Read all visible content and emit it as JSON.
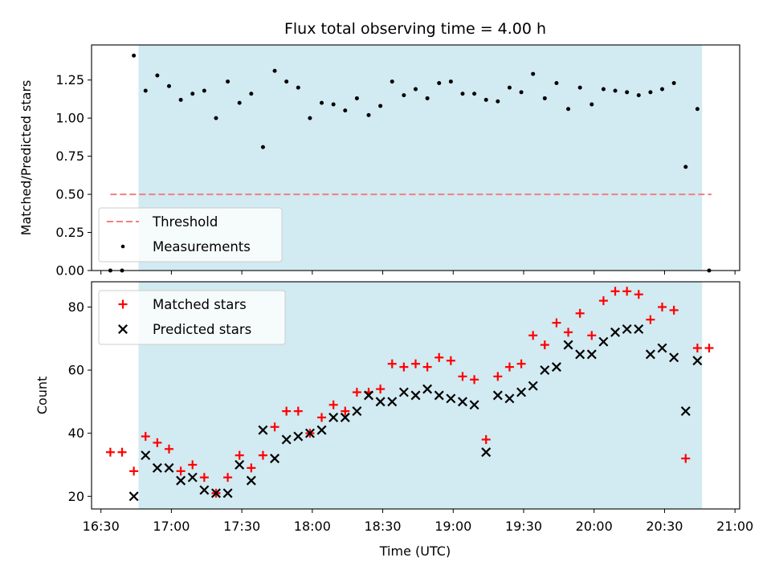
{
  "chart_data": {
    "title": "Flux total observing time = 4.00 h",
    "xlabel": "Time (UTC)",
    "x_unit": "minutes since 16:00 UTC",
    "x_range": [
      26,
      302
    ],
    "x_ticks": [
      30,
      60,
      90,
      120,
      150,
      180,
      210,
      240,
      270,
      300
    ],
    "x_tick_labels": [
      "16:30",
      "17:00",
      "17:30",
      "18:00",
      "18:30",
      "19:00",
      "19:30",
      "20:00",
      "20:30",
      "21:00"
    ],
    "observing_window": [
      46,
      286
    ],
    "observing_window_color": "#add8e6",
    "top_panel": {
      "type": "scatter",
      "ylabel": "Matched/Predicted stars",
      "ylim": [
        0,
        1.48
      ],
      "y_ticks": [
        0,
        0.25,
        0.5,
        0.75,
        1.0,
        1.25
      ],
      "y_tick_labels": [
        "0.00",
        "0.25",
        "0.50",
        "0.75",
        "1.00",
        "1.25"
      ],
      "threshold": {
        "name": "Threshold",
        "value": 0.5,
        "x_range": [
          34,
          290
        ],
        "color": "#f08080"
      },
      "measurements": {
        "name": "Measurements",
        "color": "#000000",
        "x": [
          34,
          39,
          44,
          49,
          54,
          59,
          64,
          69,
          74,
          79,
          84,
          89,
          94,
          99,
          104,
          109,
          114,
          119,
          124,
          129,
          134,
          139,
          144,
          149,
          154,
          159,
          164,
          169,
          174,
          179,
          184,
          189,
          194,
          199,
          204,
          209,
          214,
          219,
          224,
          229,
          234,
          239,
          244,
          249,
          254,
          259,
          264,
          269,
          274,
          279,
          284,
          289
        ],
        "y": [
          0.0,
          0.0,
          1.41,
          1.18,
          1.28,
          1.21,
          1.12,
          1.16,
          1.18,
          1.0,
          1.24,
          1.1,
          1.16,
          0.81,
          1.31,
          1.24,
          1.2,
          1.0,
          1.1,
          1.09,
          1.05,
          1.13,
          1.02,
          1.08,
          1.24,
          1.15,
          1.19,
          1.13,
          1.23,
          1.24,
          1.16,
          1.16,
          1.12,
          1.11,
          1.2,
          1.17,
          1.29,
          1.13,
          1.23,
          1.06,
          1.2,
          1.09,
          1.19,
          1.18,
          1.17,
          1.15,
          1.17,
          1.19,
          1.23,
          0.68,
          1.06,
          0.0
        ]
      },
      "legend_position": "lower-left"
    },
    "bottom_panel": {
      "type": "scatter",
      "ylabel": "Count",
      "ylim": [
        16,
        88
      ],
      "y_ticks": [
        20,
        40,
        60,
        80
      ],
      "y_tick_labels": [
        "20",
        "40",
        "60",
        "80"
      ],
      "series": [
        {
          "name": "Matched stars",
          "marker": "+",
          "color": "#ff0000",
          "x": [
            34,
            39,
            44,
            49,
            54,
            59,
            64,
            69,
            74,
            79,
            84,
            89,
            94,
            99,
            104,
            109,
            114,
            119,
            124,
            129,
            134,
            139,
            144,
            149,
            154,
            159,
            164,
            169,
            174,
            179,
            184,
            189,
            194,
            199,
            204,
            209,
            214,
            219,
            224,
            229,
            234,
            239,
            244,
            249,
            254,
            259,
            264,
            269,
            274,
            279,
            284,
            289
          ],
          "y": [
            34,
            34,
            28,
            39,
            37,
            35,
            28,
            30,
            26,
            21,
            26,
            33,
            29,
            33,
            42,
            47,
            47,
            40,
            45,
            49,
            47,
            53,
            53,
            54,
            62,
            61,
            62,
            61,
            64,
            63,
            58,
            57,
            38,
            58,
            61,
            62,
            71,
            68,
            75,
            72,
            78,
            71,
            82,
            85,
            85,
            84,
            76,
            80,
            79,
            32,
            67,
            67
          ]
        },
        {
          "name": "Predicted stars",
          "marker": "x",
          "color": "#000000",
          "x": [
            44,
            49,
            54,
            59,
            64,
            69,
            74,
            79,
            84,
            89,
            94,
            99,
            104,
            109,
            114,
            119,
            124,
            129,
            134,
            139,
            144,
            149,
            154,
            159,
            164,
            169,
            174,
            179,
            184,
            189,
            194,
            199,
            204,
            209,
            214,
            219,
            224,
            229,
            234,
            239,
            244,
            249,
            254,
            259,
            264,
            269,
            274,
            279,
            284
          ],
          "y": [
            20,
            33,
            29,
            29,
            25,
            26,
            22,
            21,
            21,
            30,
            25,
            41,
            32,
            38,
            39,
            40,
            41,
            45,
            45,
            47,
            52,
            50,
            50,
            53,
            52,
            54,
            52,
            51,
            50,
            49,
            34,
            52,
            51,
            53,
            55,
            60,
            61,
            68,
            65,
            65,
            69,
            72,
            73,
            73,
            65,
            67,
            64,
            47,
            63
          ]
        }
      ],
      "legend_position": "upper-left"
    }
  }
}
